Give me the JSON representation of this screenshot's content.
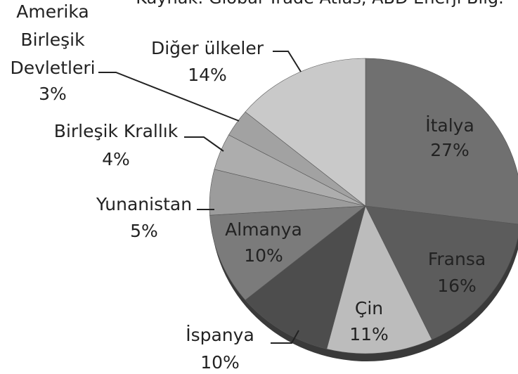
{
  "chart_data": {
    "type": "pie",
    "subtitle": "Kaynak: Global Trade Atlas, ABD Enerji Bilg.",
    "categories": [
      "İtalya",
      "Fransa",
      "Çin",
      "İspanya",
      "Almanya",
      "Yunanistan",
      "Birleşik Krallık",
      "Amerika Birleşik Devletleri",
      "Diğer ülkeler"
    ],
    "values": [
      27,
      16,
      11,
      10,
      10,
      5,
      4,
      3,
      14
    ],
    "value_labels": [
      "27%",
      "16%",
      "11%",
      "10%",
      "10%",
      "5%",
      "4%",
      "3%",
      "14%"
    ],
    "colors": [
      "#707070",
      "#5c5c5c",
      "#bcbcbc",
      "#4d4d4d",
      "#7b7b7b",
      "#9c9c9c",
      "#adadad",
      "#a2a2a2",
      "#c9c9c9"
    ]
  }
}
